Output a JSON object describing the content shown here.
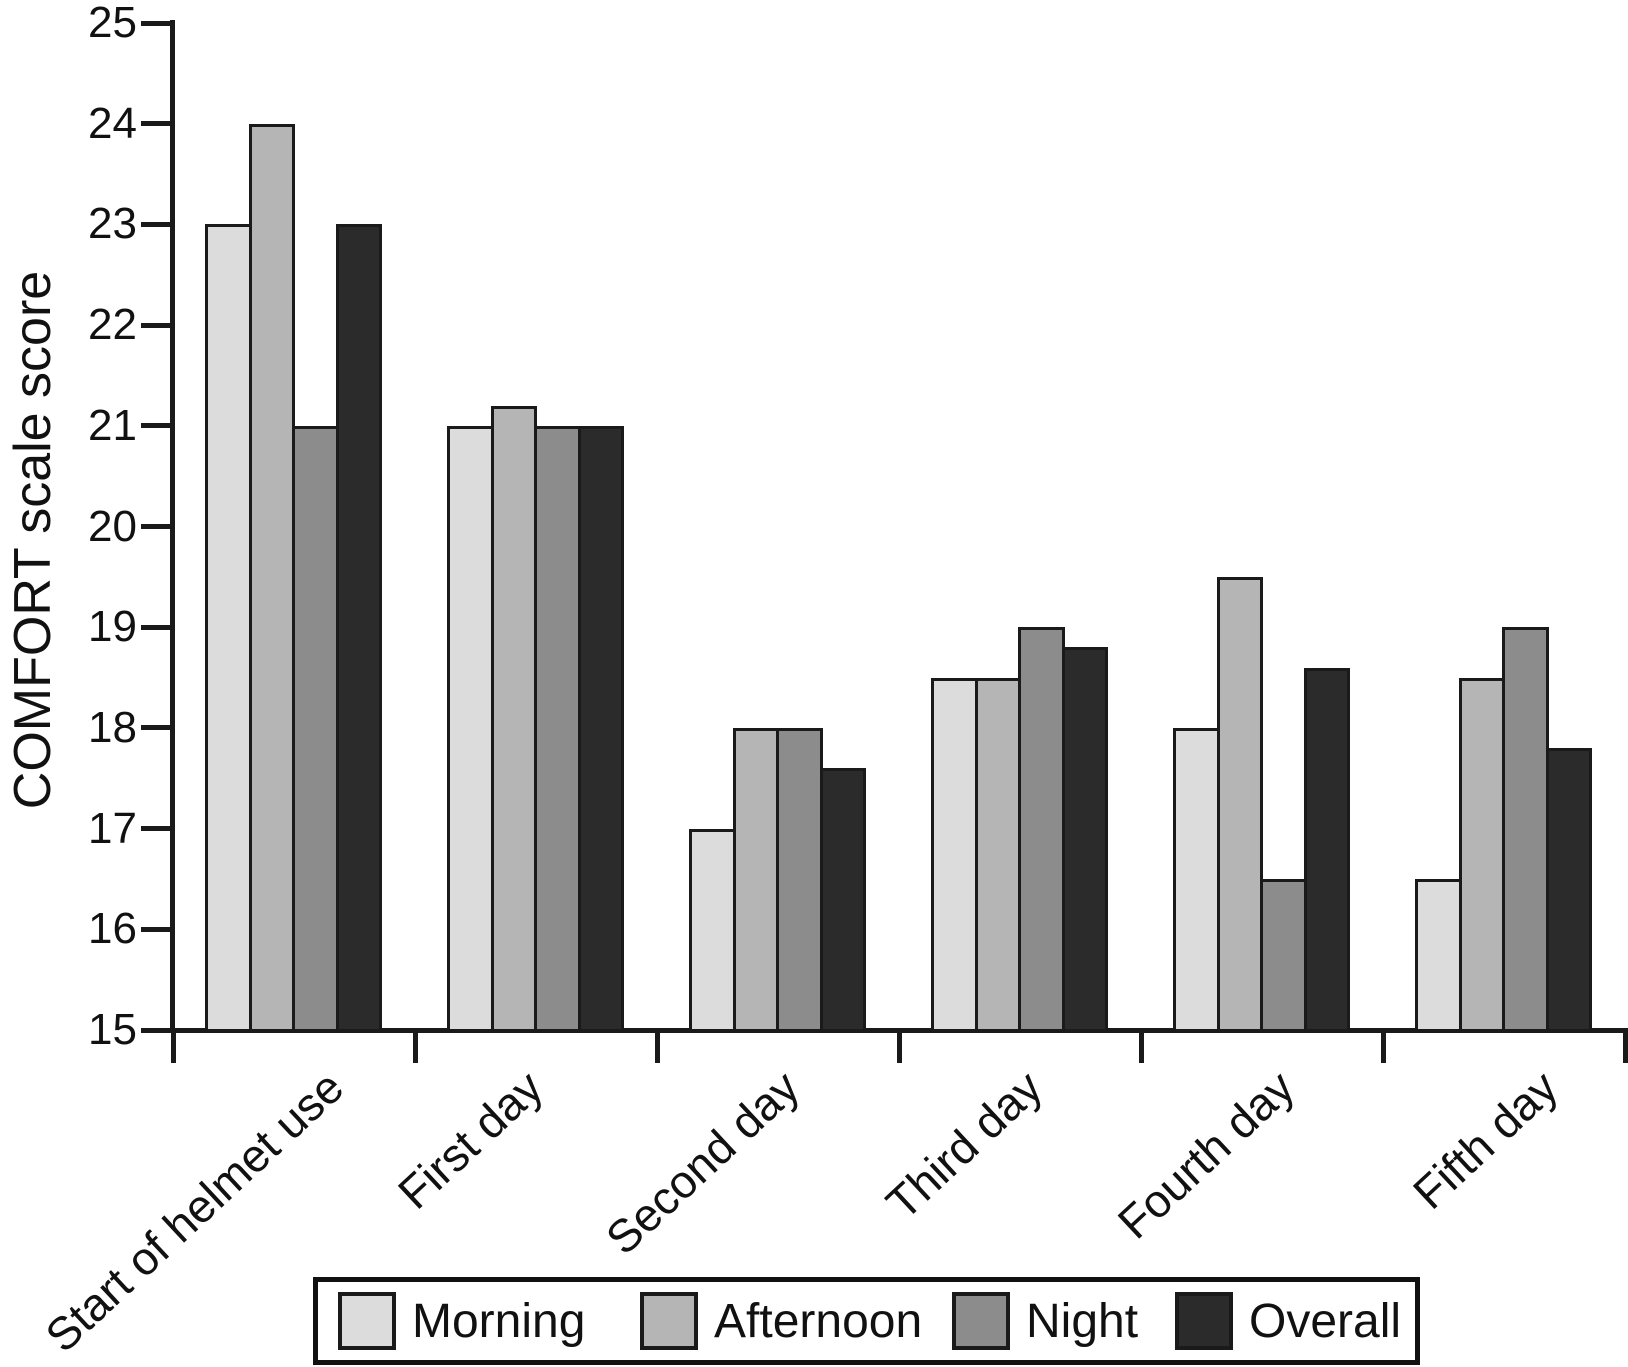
{
  "chart_data": {
    "type": "bar",
    "title": "",
    "ylabel": "COMFORT scale score",
    "xlabel": "",
    "ylim": [
      15,
      25
    ],
    "yticks": [
      15,
      16,
      17,
      18,
      19,
      20,
      21,
      22,
      23,
      24,
      25
    ],
    "grid": false,
    "legend_position": "bottom",
    "categories": [
      "Start of helmet use",
      "First day",
      "Second day",
      "Third day",
      "Fourth day",
      "Fifth day"
    ],
    "series": [
      {
        "name": "Morning",
        "color": "#dcdcdc",
        "values": [
          23,
          21,
          17,
          18.5,
          18,
          16.5
        ]
      },
      {
        "name": "Afternoon",
        "color": "#b5b5b5",
        "values": [
          24,
          21.2,
          18,
          18.5,
          19.5,
          18.5
        ]
      },
      {
        "name": "Night",
        "color": "#8c8c8c",
        "values": [
          21,
          21,
          18,
          19,
          16.5,
          19
        ]
      },
      {
        "name": "Overall",
        "color": "#2b2b2b",
        "values": [
          23,
          21,
          17.6,
          18.8,
          18.6,
          17.8
        ]
      }
    ],
    "bar_border_color": "#1a1a1a",
    "axis_color": "#1a1a1a"
  }
}
